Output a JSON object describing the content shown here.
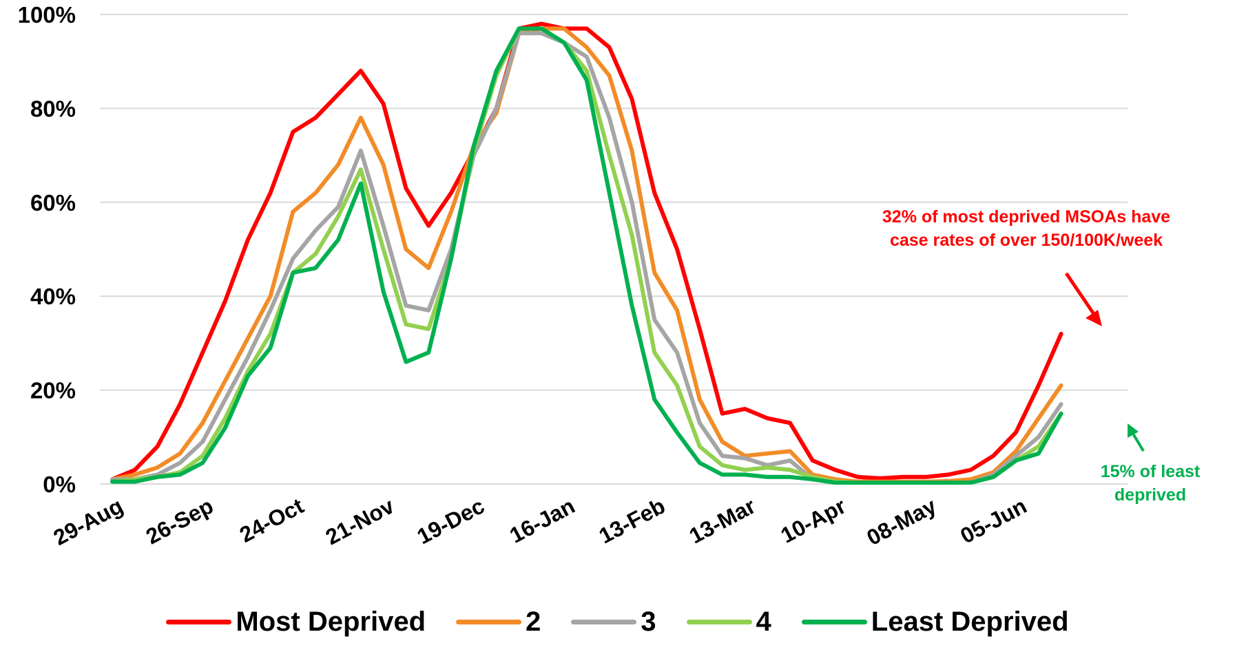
{
  "chart_data": {
    "type": "line",
    "x": [
      "29-Aug",
      "05-Sep",
      "12-Sep",
      "19-Sep",
      "26-Sep",
      "03-Oct",
      "10-Oct",
      "17-Oct",
      "24-Oct",
      "31-Oct",
      "07-Nov",
      "14-Nov",
      "21-Nov",
      "28-Nov",
      "05-Dec",
      "12-Dec",
      "19-Dec",
      "26-Dec",
      "02-Jan",
      "09-Jan",
      "16-Jan",
      "23-Jan",
      "30-Jan",
      "06-Feb",
      "13-Feb",
      "20-Feb",
      "27-Feb",
      "06-Mar",
      "13-Mar",
      "20-Mar",
      "27-Mar",
      "03-Apr",
      "10-Apr",
      "17-Apr",
      "24-Apr",
      "01-May",
      "08-May",
      "15-May",
      "22-May",
      "29-May",
      "05-Jun",
      "12-Jun",
      "19-Jun"
    ],
    "tick_labels": [
      "29-Aug",
      "26-Sep",
      "24-Oct",
      "21-Nov",
      "19-Dec",
      "16-Jan",
      "13-Feb",
      "13-Mar",
      "10-Apr",
      "08-May",
      "05-Jun"
    ],
    "ylim": [
      0,
      1
    ],
    "y_ticks": [
      "0%",
      "20%",
      "40%",
      "60%",
      "80%",
      "100%"
    ],
    "grid": true,
    "legend_position": "bottom",
    "series": [
      {
        "name": "Most Deprived",
        "color": "#ff0000",
        "values": [
          0.01,
          0.03,
          0.08,
          0.17,
          0.28,
          0.39,
          0.52,
          0.62,
          0.75,
          0.78,
          0.83,
          0.88,
          0.81,
          0.63,
          0.55,
          0.62,
          0.71,
          0.8,
          0.97,
          0.98,
          0.97,
          0.97,
          0.93,
          0.82,
          0.62,
          0.5,
          0.33,
          0.15,
          0.16,
          0.14,
          0.13,
          0.05,
          0.03,
          0.015,
          0.012,
          0.015,
          0.015,
          0.02,
          0.03,
          0.06,
          0.11,
          0.21,
          0.32
        ]
      },
      {
        "name": "2",
        "color": "#f28c28",
        "values": [
          0.01,
          0.02,
          0.035,
          0.065,
          0.13,
          0.22,
          0.31,
          0.4,
          0.58,
          0.62,
          0.68,
          0.78,
          0.68,
          0.5,
          0.46,
          0.58,
          0.72,
          0.79,
          0.96,
          0.97,
          0.97,
          0.93,
          0.87,
          0.71,
          0.45,
          0.37,
          0.18,
          0.09,
          0.06,
          0.065,
          0.07,
          0.02,
          0.01,
          0.005,
          0.005,
          0.005,
          0.005,
          0.006,
          0.01,
          0.025,
          0.07,
          0.14,
          0.21
        ]
      },
      {
        "name": "3",
        "color": "#a5a5a5",
        "values": [
          0.01,
          0.01,
          0.02,
          0.045,
          0.09,
          0.18,
          0.27,
          0.37,
          0.48,
          0.54,
          0.59,
          0.71,
          0.55,
          0.38,
          0.37,
          0.5,
          0.7,
          0.8,
          0.96,
          0.96,
          0.94,
          0.91,
          0.78,
          0.6,
          0.35,
          0.28,
          0.13,
          0.06,
          0.055,
          0.04,
          0.05,
          0.01,
          0.003,
          0.003,
          0.003,
          0.003,
          0.003,
          0.003,
          0.003,
          0.02,
          0.06,
          0.1,
          0.17
        ]
      },
      {
        "name": "4",
        "color": "#92d050",
        "values": [
          0.005,
          0.01,
          0.015,
          0.025,
          0.06,
          0.14,
          0.24,
          0.32,
          0.45,
          0.49,
          0.57,
          0.67,
          0.5,
          0.34,
          0.33,
          0.48,
          0.71,
          0.87,
          0.97,
          0.97,
          0.94,
          0.88,
          0.7,
          0.53,
          0.28,
          0.21,
          0.08,
          0.04,
          0.03,
          0.035,
          0.03,
          0.015,
          0.005,
          0.003,
          0.003,
          0.003,
          0.003,
          0.003,
          0.003,
          0.015,
          0.05,
          0.08,
          0.15
        ]
      },
      {
        "name": "Least Deprived",
        "color": "#00b050",
        "values": [
          0.005,
          0.005,
          0.015,
          0.02,
          0.045,
          0.12,
          0.23,
          0.29,
          0.45,
          0.46,
          0.52,
          0.64,
          0.41,
          0.26,
          0.28,
          0.48,
          0.72,
          0.88,
          0.97,
          0.97,
          0.94,
          0.86,
          0.62,
          0.38,
          0.18,
          0.11,
          0.045,
          0.02,
          0.02,
          0.015,
          0.015,
          0.01,
          0.003,
          0.003,
          0.003,
          0.003,
          0.003,
          0.003,
          0.003,
          0.015,
          0.05,
          0.065,
          0.15
        ]
      }
    ]
  },
  "annotations": {
    "red_note_line1": "32% of most deprived MSOAs have",
    "red_note_line2": "case rates of over 150/100K/week",
    "green_note_line1": "15% of least",
    "green_note_line2": "deprived",
    "red_color": "#ff0000",
    "green_color": "#00b050"
  },
  "legend": {
    "items": [
      {
        "label": "Most Deprived",
        "color": "#ff0000"
      },
      {
        "label": "2",
        "color": "#f28c28"
      },
      {
        "label": "3",
        "color": "#a5a5a5"
      },
      {
        "label": "4",
        "color": "#92d050"
      },
      {
        "label": "Least Deprived",
        "color": "#00b050"
      }
    ]
  }
}
